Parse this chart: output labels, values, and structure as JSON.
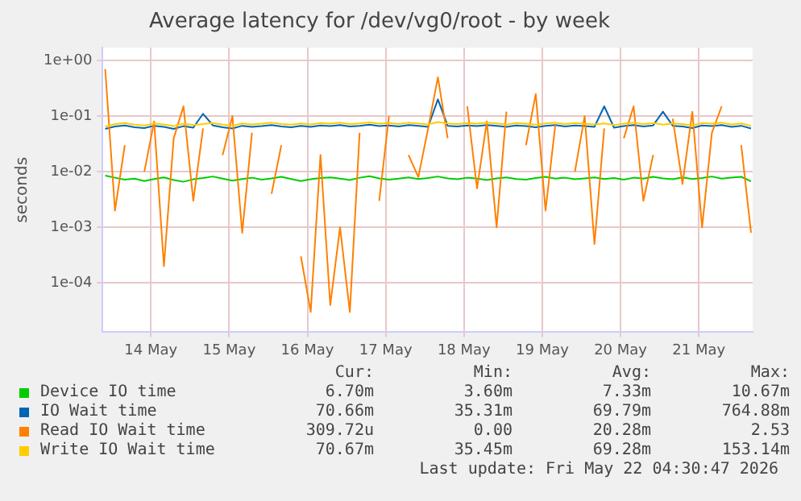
{
  "chart_data": {
    "type": "line",
    "title": "Average latency for /dev/vg0/root - by week",
    "ylabel": "seconds",
    "x": [
      "2026-05-13T22:00",
      "2026-05-14T01:00",
      "2026-05-14T04:00",
      "2026-05-14T07:00",
      "2026-05-14T10:00",
      "2026-05-14T13:00",
      "2026-05-14T16:00",
      "2026-05-14T19:00",
      "2026-05-14T22:00",
      "2026-05-15T01:00",
      "2026-05-15T04:00",
      "2026-05-15T07:00",
      "2026-05-15T10:00",
      "2026-05-15T13:00",
      "2026-05-15T16:00",
      "2026-05-15T19:00",
      "2026-05-15T22:00",
      "2026-05-16T01:00",
      "2026-05-16T04:00",
      "2026-05-16T07:00",
      "2026-05-16T10:00",
      "2026-05-16T13:00",
      "2026-05-16T16:00",
      "2026-05-16T19:00",
      "2026-05-16T22:00",
      "2026-05-17T01:00",
      "2026-05-17T04:00",
      "2026-05-17T07:00",
      "2026-05-17T10:00",
      "2026-05-17T13:00",
      "2026-05-17T16:00",
      "2026-05-17T19:00",
      "2026-05-17T22:00",
      "2026-05-18T01:00",
      "2026-05-18T04:00",
      "2026-05-18T07:00",
      "2026-05-18T10:00",
      "2026-05-18T13:00",
      "2026-05-18T16:00",
      "2026-05-18T19:00",
      "2026-05-18T22:00",
      "2026-05-19T01:00",
      "2026-05-19T04:00",
      "2026-05-19T07:00",
      "2026-05-19T10:00",
      "2026-05-19T13:00",
      "2026-05-19T16:00",
      "2026-05-19T19:00",
      "2026-05-19T22:00",
      "2026-05-20T01:00",
      "2026-05-20T04:00",
      "2026-05-20T07:00",
      "2026-05-20T10:00",
      "2026-05-20T13:00",
      "2026-05-20T16:00",
      "2026-05-20T19:00",
      "2026-05-20T22:00",
      "2026-05-21T01:00",
      "2026-05-21T04:00",
      "2026-05-21T07:00",
      "2026-05-21T10:00",
      "2026-05-21T13:00",
      "2026-05-21T16:00",
      "2026-05-21T19:00",
      "2026-05-21T22:00",
      "2026-05-22T01:00",
      "2026-05-22T04:00"
    ],
    "series": [
      {
        "name": "Device IO time",
        "color": "#00cc00",
        "values": [
          0.0085,
          0.0078,
          0.0072,
          0.0075,
          0.0068,
          0.0074,
          0.0079,
          0.0071,
          0.0066,
          0.0073,
          0.0077,
          0.0082,
          0.0075,
          0.0069,
          0.0074,
          0.0078,
          0.0072,
          0.0076,
          0.0081,
          0.0074,
          0.0068,
          0.0073,
          0.0077,
          0.0079,
          0.0075,
          0.0071,
          0.0078,
          0.0083,
          0.0076,
          0.0072,
          0.0075,
          0.0079,
          0.0074,
          0.0077,
          0.0082,
          0.0076,
          0.0073,
          0.0078,
          0.0075,
          0.0071,
          0.0076,
          0.0079,
          0.0074,
          0.0072,
          0.0077,
          0.0081,
          0.0075,
          0.0078,
          0.0073,
          0.0076,
          0.0079,
          0.0074,
          0.0077,
          0.0072,
          0.0078,
          0.0075,
          0.0081,
          0.0076,
          0.0073,
          0.0079,
          0.0074,
          0.0077,
          0.0082,
          0.0075,
          0.0078,
          0.0081,
          0.0067
        ]
      },
      {
        "name": "IO Wait time",
        "color": "#0066b3",
        "values": [
          0.059,
          0.065,
          0.068,
          0.063,
          0.061,
          0.067,
          0.064,
          0.059,
          0.066,
          0.062,
          0.11,
          0.068,
          0.063,
          0.06,
          0.067,
          0.064,
          0.066,
          0.069,
          0.065,
          0.063,
          0.067,
          0.064,
          0.068,
          0.066,
          0.069,
          0.065,
          0.067,
          0.07,
          0.066,
          0.068,
          0.065,
          0.069,
          0.067,
          0.064,
          0.2,
          0.067,
          0.065,
          0.068,
          0.066,
          0.069,
          0.067,
          0.064,
          0.068,
          0.066,
          0.063,
          0.067,
          0.069,
          0.065,
          0.068,
          0.066,
          0.064,
          0.15,
          0.062,
          0.066,
          0.069,
          0.065,
          0.068,
          0.12,
          0.067,
          0.065,
          0.061,
          0.068,
          0.066,
          0.069,
          0.064,
          0.067,
          0.06
        ]
      },
      {
        "name": "Read IO Wait time",
        "color": "#ff8000",
        "values": [
          0.7,
          0.002,
          0.03,
          null,
          0.01,
          0.08,
          0.0002,
          0.04,
          0.15,
          0.003,
          0.06,
          null,
          0.02,
          0.1,
          0.0008,
          0.05,
          null,
          0.004,
          0.03,
          null,
          0.0003,
          3e-05,
          0.02,
          4e-05,
          0.001,
          3e-05,
          0.05,
          null,
          0.003,
          0.1,
          null,
          0.02,
          0.008,
          0.06,
          0.5,
          0.04,
          null,
          0.15,
          0.005,
          0.08,
          0.001,
          0.12,
          null,
          0.03,
          0.25,
          0.002,
          0.07,
          null,
          0.01,
          0.1,
          0.0005,
          0.06,
          null,
          0.04,
          0.15,
          0.003,
          0.02,
          null,
          0.09,
          0.006,
          0.12,
          0.001,
          0.05,
          0.15,
          null,
          0.03,
          0.0008
        ]
      },
      {
        "name": "Write IO Wait time",
        "color": "#ffcc00",
        "values": [
          0.065,
          0.072,
          0.075,
          0.07,
          0.068,
          0.074,
          0.071,
          0.066,
          0.073,
          0.069,
          0.072,
          0.075,
          0.07,
          0.067,
          0.074,
          0.071,
          0.073,
          0.076,
          0.072,
          0.07,
          0.074,
          0.071,
          0.075,
          0.073,
          0.076,
          0.072,
          0.074,
          0.077,
          0.073,
          0.075,
          0.072,
          0.076,
          0.074,
          0.071,
          0.078,
          0.074,
          0.072,
          0.075,
          0.073,
          0.076,
          0.074,
          0.071,
          0.075,
          0.073,
          0.07,
          0.074,
          0.076,
          0.072,
          0.075,
          0.073,
          0.071,
          0.074,
          0.069,
          0.073,
          0.076,
          0.072,
          0.075,
          0.07,
          0.074,
          0.072,
          0.068,
          0.075,
          0.073,
          0.076,
          0.071,
          0.074,
          0.067
        ]
      }
    ],
    "log": "y",
    "ylim": [
      1.3e-05,
      1.7
    ],
    "yticks": [
      {
        "value": 1,
        "label": "1e+00"
      },
      {
        "value": 0.1,
        "label": "1e-01"
      },
      {
        "value": 0.01,
        "label": "1e-02"
      },
      {
        "value": 0.001,
        "label": "1e-03"
      },
      {
        "value": 0.0001,
        "label": "1e-04"
      }
    ],
    "xlim": [
      "2026-05-13T21:00",
      "2026-05-22T04:30"
    ],
    "xticks": [
      {
        "value": "2026-05-14T12:00",
        "label": "14 May"
      },
      {
        "value": "2026-05-15T12:00",
        "label": "15 May"
      },
      {
        "value": "2026-05-16T12:00",
        "label": "16 May"
      },
      {
        "value": "2026-05-17T12:00",
        "label": "17 May"
      },
      {
        "value": "2026-05-18T12:00",
        "label": "18 May"
      },
      {
        "value": "2026-05-19T12:00",
        "label": "19 May"
      },
      {
        "value": "2026-05-20T12:00",
        "label": "20 May"
      },
      {
        "value": "2026-05-21T12:00",
        "label": "21 May"
      }
    ],
    "grid": true,
    "marker": "none",
    "line_style": "solid",
    "legend": "bottom",
    "annotations": [
      "Cur:",
      "Min:",
      "Avg:",
      "Max:",
      "6.70m",
      "3.60m",
      "7.33m",
      "10.67m",
      "70.66m",
      "35.31m",
      "69.79m",
      "764.88m",
      "309.72u",
      "0.00",
      "20.28m",
      "2.53",
      "70.67m",
      "35.45m",
      "69.28m",
      "153.14m",
      "Last update: Fri May 22 04:30:47 2026"
    ]
  }
}
